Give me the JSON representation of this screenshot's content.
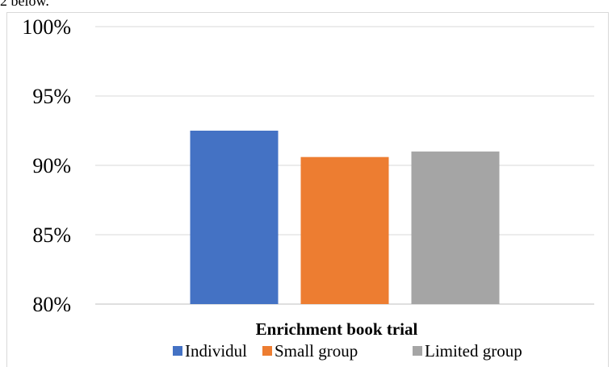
{
  "page_fragment": "2 below.",
  "chart_data": {
    "type": "bar",
    "categories": [
      "Enrichment book trial"
    ],
    "series": [
      {
        "name": "Individul",
        "values": [
          92.5
        ],
        "color": "#4472c4"
      },
      {
        "name": "Small group",
        "values": [
          90.6
        ],
        "color": "#ed7d31"
      },
      {
        "name": "Limited group",
        "values": [
          91.0
        ],
        "color": "#a5a5a5"
      }
    ],
    "ylim": [
      80,
      100
    ],
    "yticks": [
      80,
      85,
      90,
      95,
      100
    ],
    "ytick_labels": [
      "80%",
      "85%",
      "90%",
      "95%",
      "100%"
    ],
    "grid": true,
    "legend_position": "bottom"
  }
}
